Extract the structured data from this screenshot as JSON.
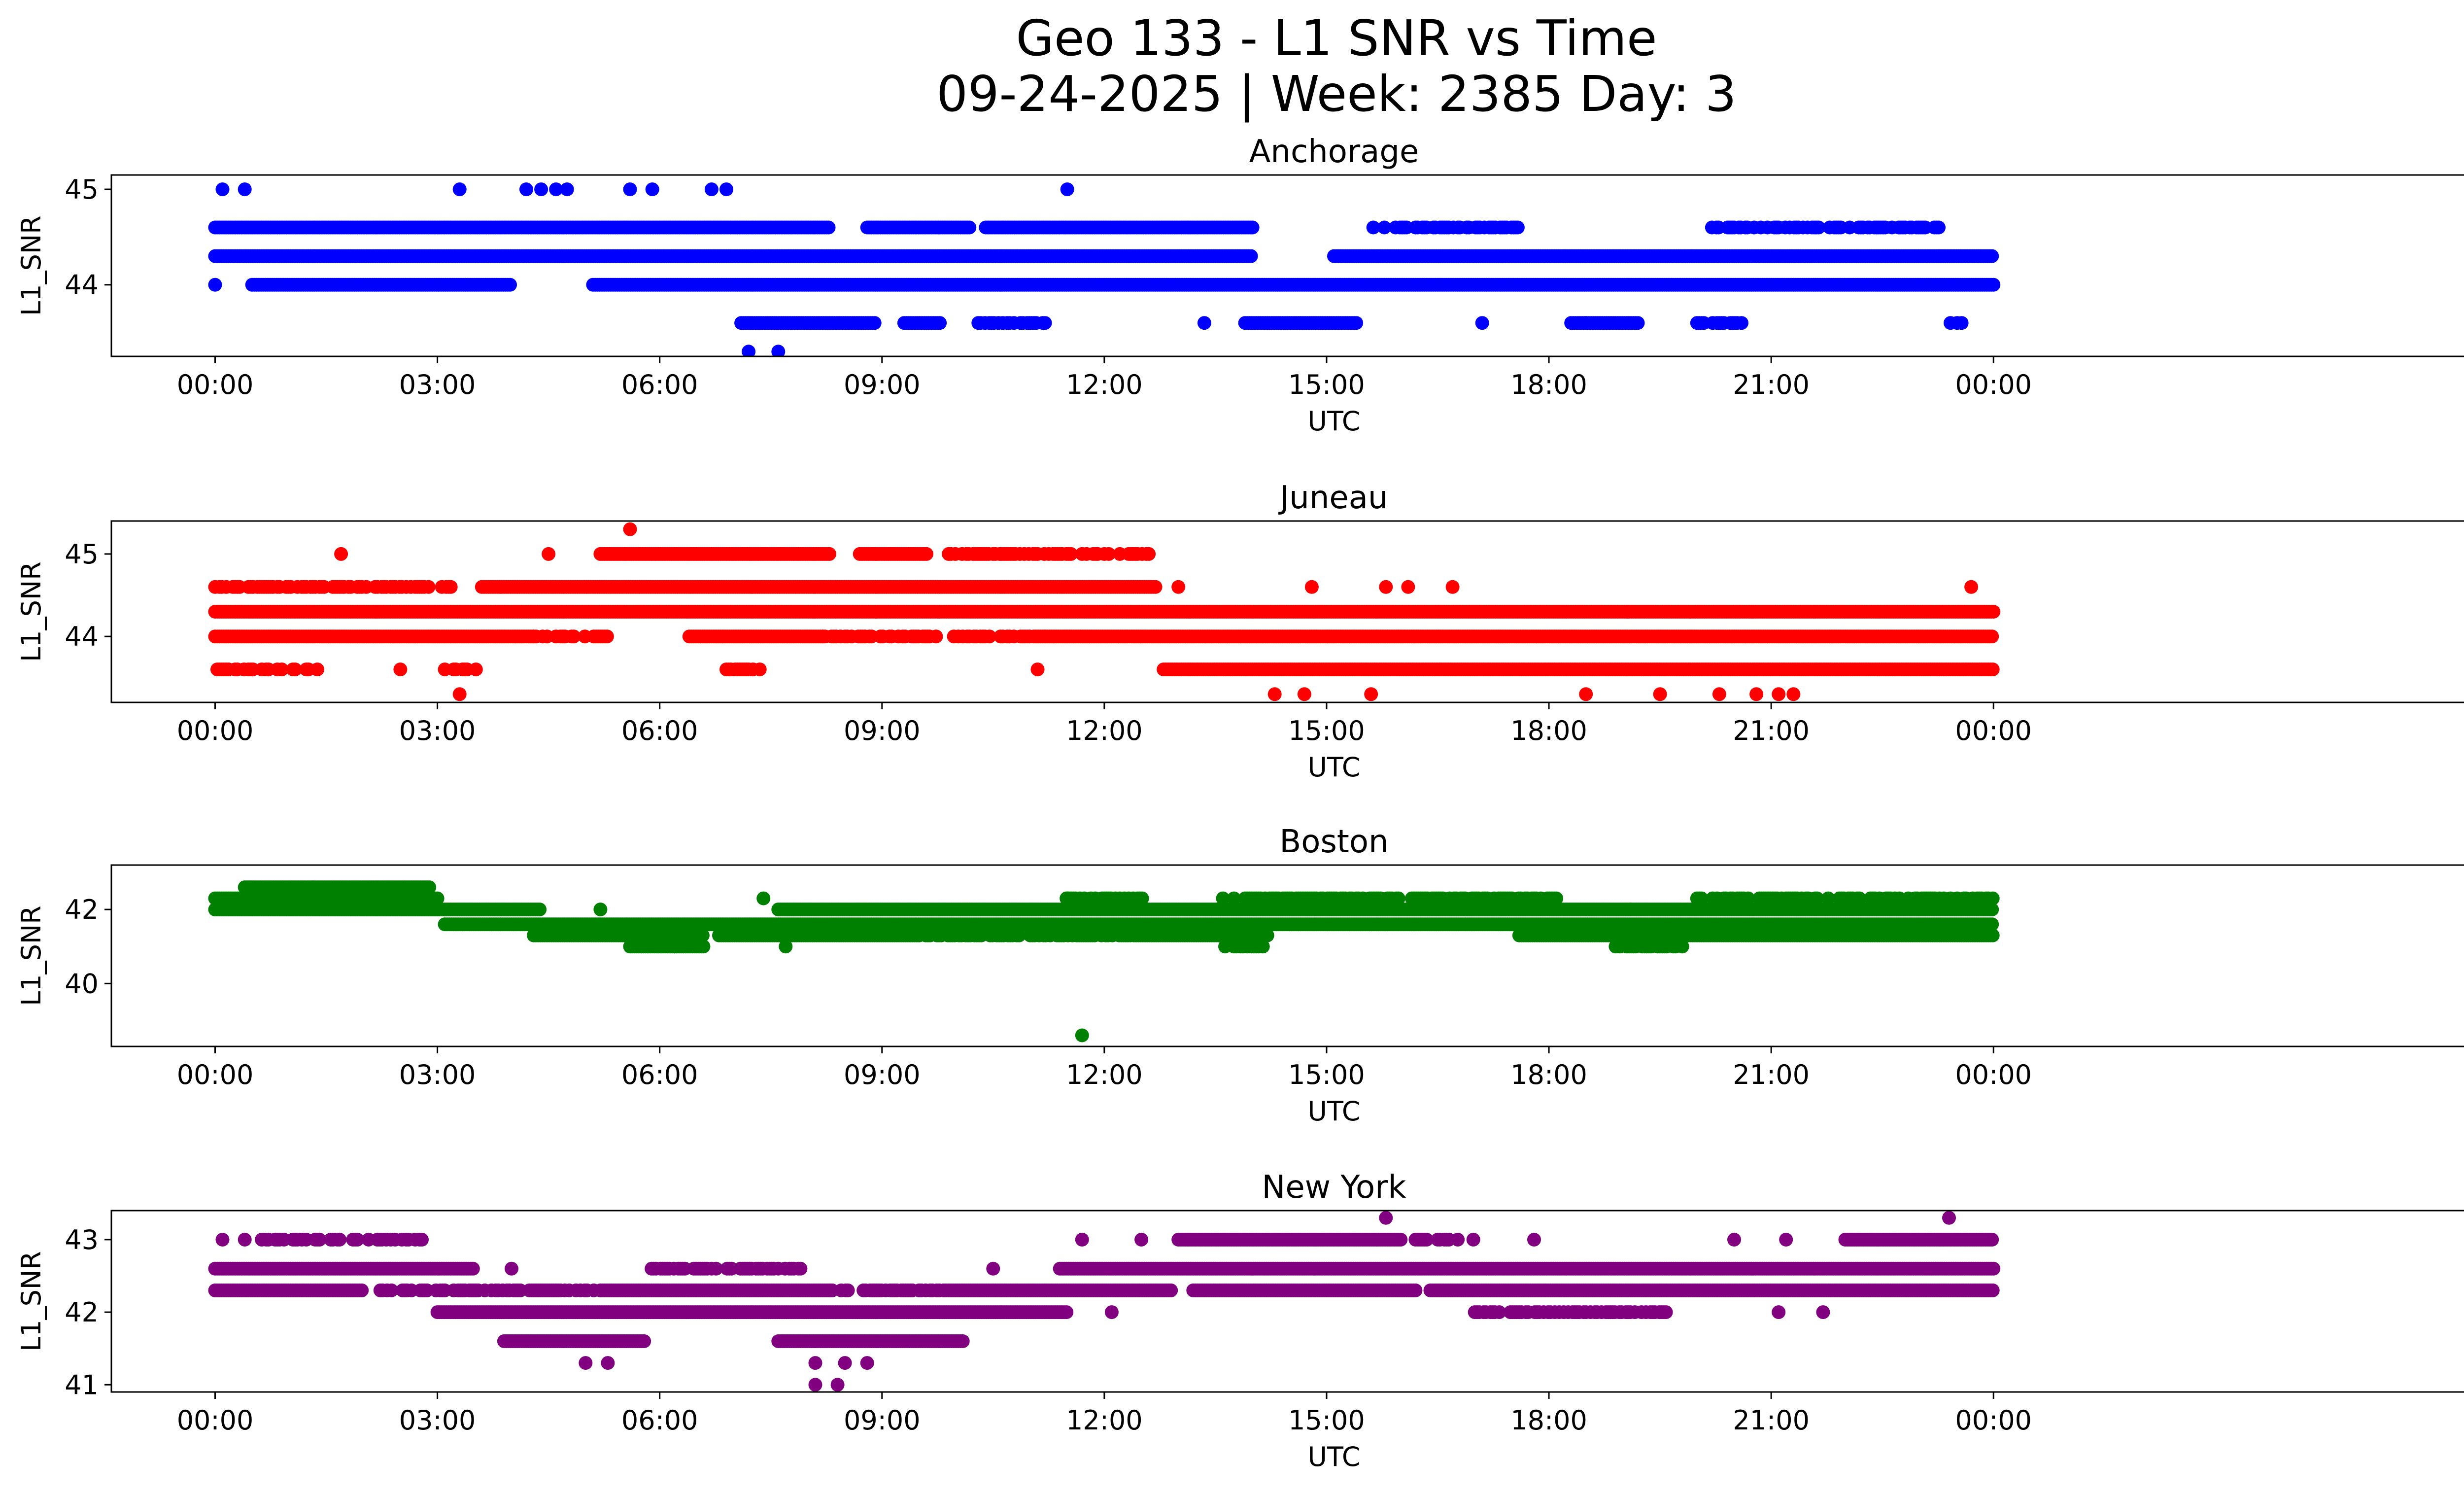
{
  "title": "Geo 133 - L1 SNR vs Time",
  "subtitle": "09-24-2025 | Week: 2385 Day: 3",
  "chart_data": [
    {
      "type": "scatter",
      "title": "Anchorage",
      "xlabel": "UTC",
      "ylabel": "L1_SNR",
      "color": "#0000ff",
      "xlim": [
        -1.4,
        31.6
      ],
      "ylim": [
        43.25,
        45.15
      ],
      "xticks": [
        0,
        3,
        6,
        9,
        12,
        15,
        18,
        21,
        24
      ],
      "xtick_labels": [
        "00:00",
        "03:00",
        "06:00",
        "09:00",
        "12:00",
        "15:00",
        "18:00",
        "21:00",
        "00:00"
      ],
      "yticks": [
        44,
        45
      ],
      "ytick_labels": [
        "44",
        "45"
      ],
      "bands": [
        {
          "y": 44.3,
          "x": [
            [
              0,
              14
            ]
          ],
          "ext": [
            [
              15.1,
              24
            ]
          ]
        },
        {
          "y": 44.6,
          "x": [
            [
              0,
              8.3
            ],
            [
              8.8,
              10.2
            ],
            [
              10.4,
              14
            ]
          ],
          "sparse": [
            [
              15.6,
              17.6
            ],
            [
              20.2,
              23.3
            ]
          ]
        },
        {
          "y": 44.0,
          "x": [
            [
              0.5,
              4
            ],
            [
              5.1,
              24
            ]
          ]
        },
        {
          "y": 43.6,
          "x": [
            [
              7.1,
              8.9
            ],
            [
              9.3,
              9.8
            ],
            [
              13.9,
              15.4
            ],
            [
              18.3,
              19.2
            ]
          ],
          "sparse": [
            [
              10.3,
              11.2
            ],
            [
              20.0,
              20.6
            ],
            [
              23.3,
              23.6
            ]
          ]
        }
      ],
      "points": [
        [
          0.1,
          45
        ],
        [
          0.4,
          45
        ],
        [
          3.3,
          45
        ],
        [
          4.2,
          45
        ],
        [
          4.4,
          45
        ],
        [
          4.6,
          45
        ],
        [
          4.75,
          45
        ],
        [
          5.6,
          45
        ],
        [
          5.9,
          45
        ],
        [
          6.7,
          45
        ],
        [
          6.9,
          45
        ],
        [
          11.5,
          45
        ],
        [
          0.0,
          44
        ],
        [
          7.2,
          43.3
        ],
        [
          7.6,
          43.3
        ],
        [
          13.35,
          43.6
        ],
        [
          17.1,
          43.6
        ],
        [
          18.5,
          43.6
        ]
      ]
    },
    {
      "type": "scatter",
      "title": "Juneau",
      "xlabel": "UTC",
      "ylabel": "L1_SNR",
      "color": "#ff0000",
      "xlim": [
        -1.4,
        31.6
      ],
      "ylim": [
        43.2,
        45.4
      ],
      "xticks": [
        0,
        3,
        6,
        9,
        12,
        15,
        18,
        21,
        24
      ],
      "xtick_labels": [
        "00:00",
        "03:00",
        "06:00",
        "09:00",
        "12:00",
        "15:00",
        "18:00",
        "21:00",
        "00:00"
      ],
      "yticks": [
        44,
        45
      ],
      "ytick_labels": [
        "44",
        "45"
      ],
      "bands": [
        {
          "y": 44.3,
          "x": [
            [
              0,
              24
            ]
          ]
        },
        {
          "y": 44.0,
          "x": [
            [
              0,
              4.3
            ],
            [
              6.4,
              8.2
            ],
            [
              11.2,
              24
            ]
          ],
          "sparse": [
            [
              4.3,
              5.3
            ],
            [
              8.2,
              11.2
            ]
          ]
        },
        {
          "y": 44.6,
          "x": [
            [
              3.6,
              12.7
            ]
          ],
          "sparse": [
            [
              0,
              3.2
            ]
          ]
        },
        {
          "y": 45.0,
          "x": [
            [
              5.2,
              8.3
            ],
            [
              8.7,
              9.6
            ]
          ],
          "sparse": [
            [
              9.9,
              12.6
            ]
          ]
        },
        {
          "y": 43.6,
          "x": [
            [
              12.8,
              24
            ]
          ],
          "sparse": [
            [
              0,
              1.4
            ],
            [
              3.1,
              3.6
            ],
            [
              6.9,
              7.4
            ]
          ]
        }
      ],
      "points": [
        [
          1.7,
          45
        ],
        [
          4.5,
          45
        ],
        [
          5.6,
          45.3
        ],
        [
          13.0,
          44.6
        ],
        [
          14.8,
          44.6
        ],
        [
          15.8,
          44.6
        ],
        [
          16.1,
          44.6
        ],
        [
          16.7,
          44.6
        ],
        [
          23.7,
          44.6
        ],
        [
          11.1,
          43.6
        ],
        [
          2.5,
          43.6
        ],
        [
          3.3,
          43.3
        ],
        [
          14.3,
          43.3
        ],
        [
          14.7,
          43.3
        ],
        [
          15.6,
          43.3
        ],
        [
          18.5,
          43.3
        ],
        [
          19.5,
          43.3
        ],
        [
          20.3,
          43.3
        ],
        [
          20.8,
          43.3
        ],
        [
          21.1,
          43.3
        ],
        [
          21.3,
          43.3
        ]
      ]
    },
    {
      "type": "scatter",
      "title": "Boston",
      "xlabel": "UTC",
      "ylabel": "L1_SNR",
      "color": "#008000",
      "xlim": [
        -1.4,
        31.6
      ],
      "ylim": [
        38.3,
        43.2
      ],
      "xticks": [
        0,
        3,
        6,
        9,
        12,
        15,
        18,
        21,
        24
      ],
      "xtick_labels": [
        "00:00",
        "03:00",
        "06:00",
        "09:00",
        "12:00",
        "15:00",
        "18:00",
        "21:00",
        "00:00"
      ],
      "yticks": [
        40,
        42
      ],
      "ytick_labels": [
        "40",
        "42"
      ],
      "bands": [
        {
          "y": 42.0,
          "x": [
            [
              0,
              4.4
            ],
            [
              7.6,
              24
            ]
          ]
        },
        {
          "y": 42.3,
          "x": [
            [
              0,
              3.0
            ]
          ],
          "sparse": [
            [
              11.4,
              12.6
            ],
            [
              13.6,
              18.2
            ],
            [
              20.0,
              24
            ]
          ]
        },
        {
          "y": 42.6,
          "x": [
            [
              0.4,
              2.9
            ]
          ]
        },
        {
          "y": 41.6,
          "x": [
            [
              3.1,
              24
            ]
          ]
        },
        {
          "y": 41.3,
          "x": [
            [
              4.3,
              6.6
            ],
            [
              6.8,
              9.5
            ],
            [
              12.4,
              14.2
            ],
            [
              17.6,
              24
            ]
          ],
          "sparse": [
            [
              9.5,
              12.4
            ]
          ]
        },
        {
          "y": 41.0,
          "x": [
            [
              5.6,
              6.6
            ]
          ],
          "sparse": [
            [
              13.6,
              14.2
            ],
            [
              18.9,
              19.8
            ]
          ]
        }
      ],
      "points": [
        [
          5.2,
          42.0
        ],
        [
          6.2,
          41.0
        ],
        [
          7.4,
          42.3
        ],
        [
          7.7,
          41.0
        ],
        [
          11.5,
          42.3
        ],
        [
          19.1,
          42.0
        ],
        [
          11.7,
          38.6
        ]
      ]
    },
    {
      "type": "scatter",
      "title": "New York",
      "xlabel": "UTC",
      "ylabel": "L1_SNR",
      "color": "#800080",
      "xlim": [
        -1.4,
        31.6
      ],
      "ylim": [
        40.9,
        43.4
      ],
      "xticks": [
        0,
        3,
        6,
        9,
        12,
        15,
        18,
        21,
        24
      ],
      "xtick_labels": [
        "00:00",
        "03:00",
        "06:00",
        "09:00",
        "12:00",
        "15:00",
        "18:00",
        "21:00",
        "00:00"
      ],
      "yticks": [
        41,
        42,
        43
      ],
      "ytick_labels": [
        "41",
        "42",
        "43"
      ],
      "bands": [
        {
          "y": 42.6,
          "x": [
            [
              0,
              3.5
            ],
            [
              11.4,
              24
            ]
          ],
          "sparse": [
            [
              5.8,
              7.9
            ]
          ]
        },
        {
          "y": 42.3,
          "x": [
            [
              0,
              2.0
            ],
            [
              5.2,
              8.3
            ],
            [
              9.9,
              12.9
            ],
            [
              13.2,
              16.2
            ],
            [
              16.4,
              24
            ]
          ],
          "sparse": [
            [
              2.2,
              5.2
            ],
            [
              8.3,
              9.9
            ]
          ]
        },
        {
          "y": 43.0,
          "x": [
            [
              13.0,
              16.0
            ],
            [
              22.0,
              24
            ]
          ],
          "sparse": [
            [
              0.6,
              2.8
            ],
            [
              16.2,
              17.0
            ]
          ]
        },
        {
          "y": 42.0,
          "x": [
            [
              3.0,
              11.5
            ]
          ],
          "sparse": [
            [
              17.0,
              19.6
            ]
          ]
        },
        {
          "y": 41.6,
          "x": [
            [
              3.9,
              5.8
            ],
            [
              7.6,
              10.1
            ]
          ]
        }
      ],
      "points": [
        [
          0.1,
          43
        ],
        [
          0.4,
          43
        ],
        [
          11.7,
          43
        ],
        [
          12.5,
          43
        ],
        [
          17.8,
          43
        ],
        [
          20.5,
          43
        ],
        [
          21.2,
          43
        ],
        [
          15.8,
          43.3
        ],
        [
          23.4,
          43.3
        ],
        [
          4.0,
          42.6
        ],
        [
          7.9,
          42.6
        ],
        [
          10.5,
          42.6
        ],
        [
          12.1,
          42.0
        ],
        [
          21.1,
          42.0
        ],
        [
          21.7,
          42.0
        ],
        [
          5.0,
          41.3
        ],
        [
          5.3,
          41.3
        ],
        [
          8.1,
          41.3
        ],
        [
          8.5,
          41.3
        ],
        [
          8.8,
          41.3
        ],
        [
          8.1,
          41.0
        ],
        [
          8.4,
          41.0
        ]
      ]
    }
  ]
}
